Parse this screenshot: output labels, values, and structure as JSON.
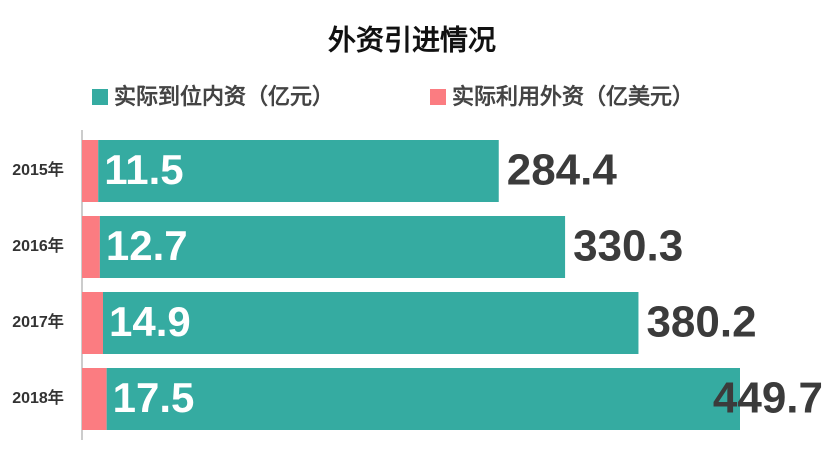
{
  "chart_data": {
    "type": "stacked-bar-horizontal",
    "title": "外资引进情况",
    "categories": [
      "2015年",
      "2016年",
      "2017年",
      "2018年"
    ],
    "series": [
      {
        "name": "实际到位内资（亿元）",
        "color": "#35aba1",
        "values": [
          284.4,
          330.3,
          380.2,
          449.7
        ]
      },
      {
        "name": "实际利用外资（亿美元）",
        "color": "#fb7c81",
        "values": [
          11.5,
          12.7,
          14.9,
          17.5
        ]
      }
    ]
  }
}
